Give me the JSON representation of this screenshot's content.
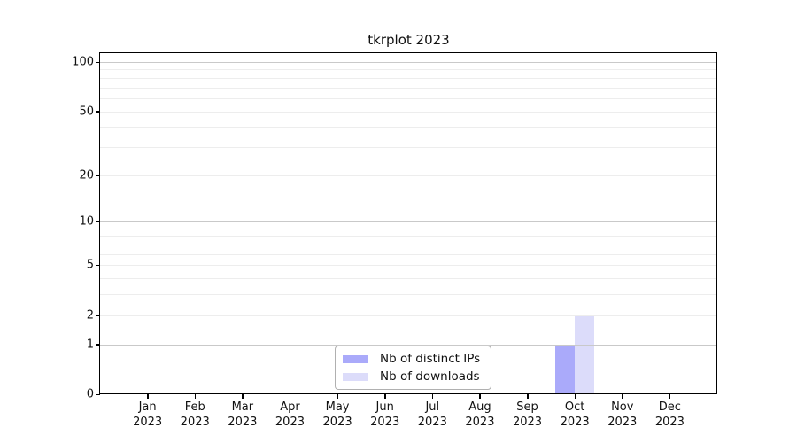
{
  "window": {
    "background": "#ffffff"
  },
  "chart_data": {
    "type": "bar",
    "title": "tkrplot 2023",
    "categories": [
      "Jan",
      "Feb",
      "Mar",
      "Apr",
      "May",
      "Jun",
      "Jul",
      "Aug",
      "Sep",
      "Oct",
      "Nov",
      "Dec"
    ],
    "category_sublabel": "2023",
    "series": [
      {
        "name": "Nb of distinct IPs",
        "color": "#aaaafa",
        "values": [
          0,
          0,
          0,
          0,
          0,
          0,
          0,
          0,
          0,
          1,
          0,
          0
        ]
      },
      {
        "name": "Nb of downloads",
        "color": "#dcdcfa",
        "values": [
          0,
          0,
          0,
          0,
          0,
          0,
          0,
          0,
          0,
          2,
          0,
          0
        ]
      }
    ],
    "yscale": "log1p",
    "ylim": [
      0,
      113
    ],
    "yticks": [
      0,
      1,
      2,
      5,
      10,
      20,
      50,
      100
    ],
    "grid": {
      "major_lines": [
        1,
        10,
        100
      ],
      "minor_lines": [
        2,
        3,
        4,
        5,
        6,
        7,
        8,
        9,
        20,
        30,
        40,
        50,
        60,
        70,
        80,
        90
      ],
      "major_color": "#c9c9c9",
      "minor_color": "#ededed"
    },
    "legend": {
      "position": "bottom-center-inside",
      "border_color": "#b0b0b0"
    }
  }
}
